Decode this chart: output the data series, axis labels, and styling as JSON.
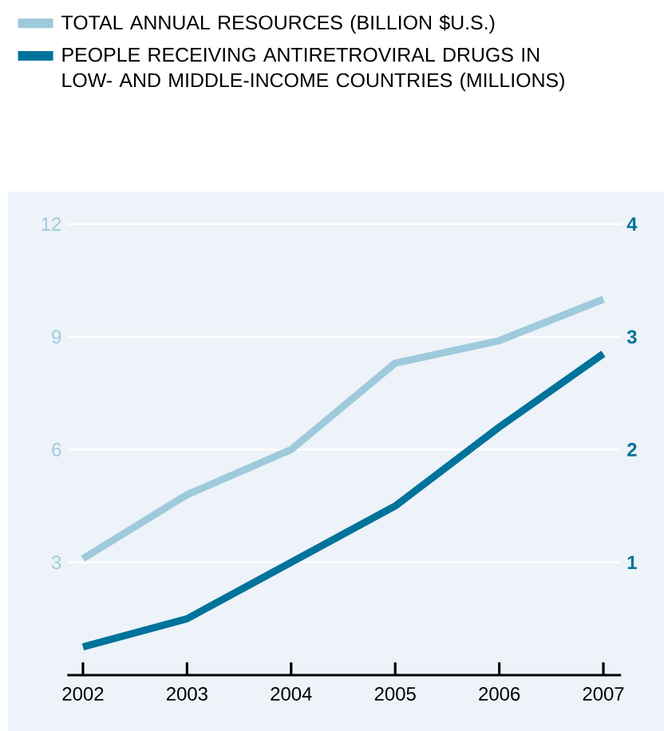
{
  "chart_data": {
    "type": "line",
    "categories": [
      "2002",
      "2003",
      "2004",
      "2005",
      "2006",
      "2007"
    ],
    "series": [
      {
        "name": "TOTAL ANNUAL RESOURCES (BILLION $U.S.)",
        "color": "#9ecadc",
        "values": [
          3.1,
          4.8,
          6.0,
          8.3,
          8.9,
          10.0
        ]
      },
      {
        "name": "PEOPLE RECEIVING ANTIRETROVIRAL DRUGS IN LOW- AND MIDDLE-INCOME COUNTRIES (MILLIONS)",
        "color": "#00739b",
        "axis": "y2",
        "values": [
          0.25,
          0.5,
          1.0,
          1.5,
          2.2,
          2.85
        ]
      }
    ],
    "ylim": [
      0,
      12
    ],
    "yticks": [
      3,
      6,
      9,
      12
    ],
    "y2lim": [
      0,
      4
    ],
    "y2ticks": [
      1,
      2,
      3,
      4
    ],
    "grid": "y",
    "legend": "top",
    "line_style": "solid"
  }
}
